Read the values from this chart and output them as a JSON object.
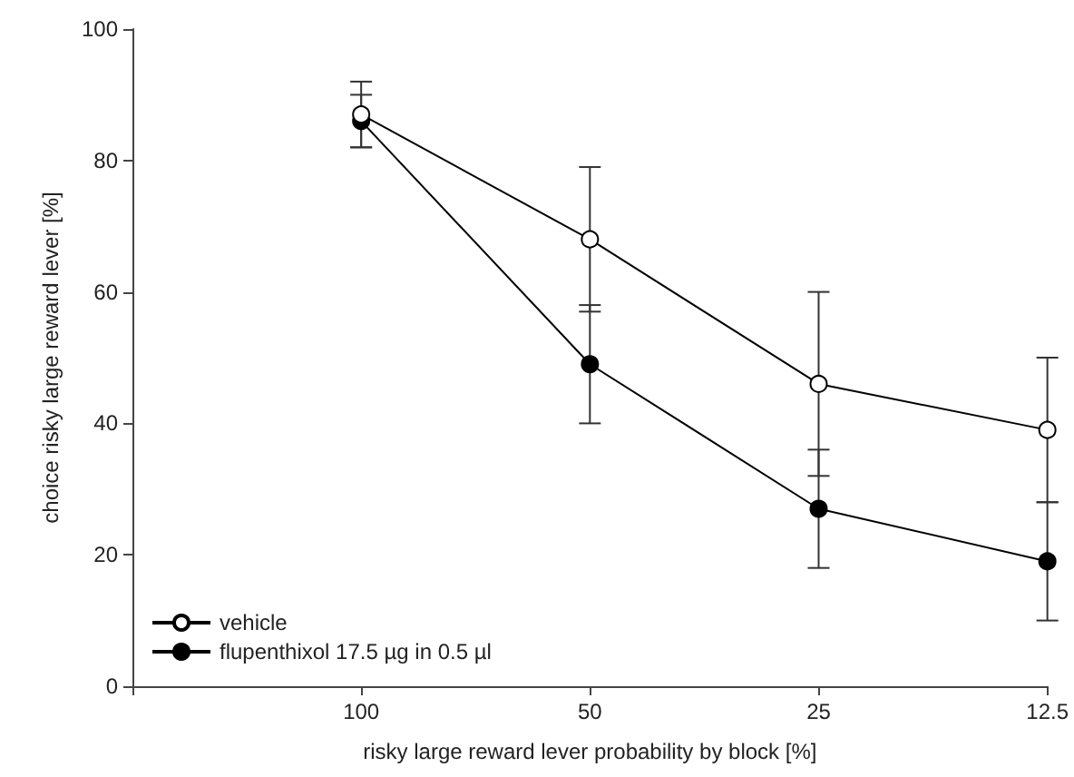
{
  "chart_data": {
    "type": "line",
    "xlabel": "risky large reward lever probability by block [%]",
    "ylabel": "choice risky large reward lever [%]",
    "categories": [
      null,
      "100",
      "50",
      "25",
      "12.5"
    ],
    "series": [
      {
        "name": "vehicle",
        "color": "#ffffff",
        "values": [
          null,
          87,
          68,
          46,
          39
        ],
        "errors": [
          null,
          5,
          11,
          14,
          11
        ]
      },
      {
        "name": "flupenthixol 17.5 µg in 0.5 µl",
        "color": "#000000",
        "values": [
          null,
          86,
          49,
          27,
          19
        ],
        "errors": [
          null,
          4,
          9,
          9,
          9
        ]
      }
    ],
    "ylim": [
      0,
      100
    ],
    "yticks": [
      0,
      20,
      40,
      60,
      80,
      100
    ],
    "grid": false,
    "legend": "bottom left",
    "marker": "circle",
    "line_style": "solid"
  }
}
